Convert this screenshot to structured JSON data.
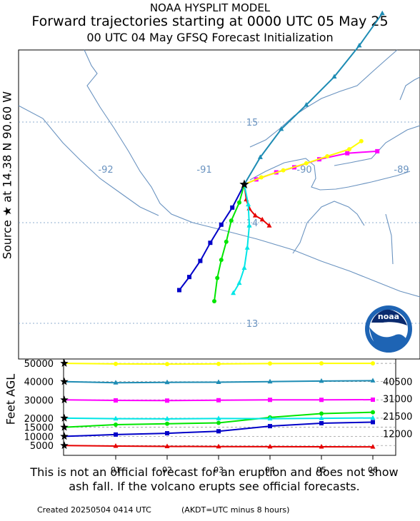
{
  "header": {
    "model": "NOAA HYSPLIT MODEL",
    "title": "Forward trajectories starting at 0000 UTC 05 May 25",
    "subtitle": "00 UTC 04 May    GFSQ  Forecast Initialization"
  },
  "source_label": "Source ★ at   14.38 N   90.60 W",
  "logo_text": "noaa",
  "disclaimer": "This is not an official forecast for an eruption and does not show ash fall. If the volcano erupts see official forecasts.",
  "footer": {
    "created": "Created 20250504 0414 UTC",
    "note": "(AKDT=UTC minus 8 hours)"
  },
  "colors": {
    "map_line": "#6a93c0",
    "grid_label": "#6a93c0",
    "t5000": "#e60000",
    "t10000": "#0000c8",
    "t15000": "#00e600",
    "t20000": "#00e6e6",
    "t30000": "#ff00ff",
    "t40000": "#1e8cb4",
    "t50000": "#ffff00"
  },
  "chart_data": [
    {
      "type": "line",
      "title": "Forward trajectories starting at 0000 UTC 05 May 25",
      "source": {
        "lat": 14.38,
        "lon": -90.6
      },
      "xlabel": "",
      "ylabel": "",
      "lon_ticks": [
        "-92",
        "-91",
        "-90",
        "-89"
      ],
      "lat_ticks": [
        "15",
        "14",
        "13"
      ],
      "series": [
        {
          "name": "5000",
          "lon": [
            -90.6,
            -90.58,
            -90.55,
            -90.49,
            -90.42,
            -90.35
          ],
          "lat": [
            14.38,
            14.23,
            14.14,
            14.07,
            14.03,
            13.97
          ]
        },
        {
          "name": "10000",
          "lon": [
            -90.6,
            -90.72,
            -90.83,
            -90.94,
            -91.04,
            -91.15,
            -91.25
          ],
          "lat": [
            14.38,
            14.15,
            13.98,
            13.8,
            13.62,
            13.46,
            13.33
          ]
        },
        {
          "name": "15000",
          "lon": [
            -90.6,
            -90.65,
            -90.73,
            -90.78,
            -90.83,
            -90.87,
            -90.9
          ],
          "lat": [
            14.38,
            14.2,
            14.02,
            13.81,
            13.63,
            13.45,
            13.22
          ]
        },
        {
          "name": "20000",
          "lon": [
            -90.6,
            -90.56,
            -90.55,
            -90.57,
            -90.6,
            -90.65,
            -90.71
          ],
          "lat": [
            14.38,
            14.18,
            13.97,
            13.75,
            13.55,
            13.4,
            13.3
          ]
        },
        {
          "name": "30000",
          "lon": [
            -90.6,
            -90.48,
            -90.28,
            -90.1,
            -89.85,
            -89.57,
            -89.27
          ],
          "lat": [
            14.38,
            14.43,
            14.5,
            14.55,
            14.63,
            14.69,
            14.71
          ]
        },
        {
          "name": "40000",
          "lon": [
            -90.6,
            -90.44,
            -90.23,
            -89.98,
            -89.7,
            -89.45,
            -89.22
          ],
          "lat": [
            14.38,
            14.65,
            14.93,
            15.17,
            15.45,
            15.76,
            16.08
          ]
        },
        {
          "name": "50000",
          "lon": [
            -90.6,
            -90.43,
            -90.21,
            -89.98,
            -89.77,
            -89.55,
            -89.43
          ],
          "lat": [
            14.38,
            14.45,
            14.52,
            14.59,
            14.66,
            14.73,
            14.81
          ]
        }
      ]
    },
    {
      "type": "line",
      "xlabel": "",
      "ylabel": "Feet AGL",
      "x": [
        "00",
        "01",
        "02",
        "03",
        "04",
        "05",
        "06"
      ],
      "x_tick_labels": [
        "01",
        "02",
        "03",
        "04",
        "05",
        "06"
      ],
      "y_ticks": [
        "50000",
        "40000",
        "30000",
        "20000",
        "15000",
        "10000",
        "5000"
      ],
      "end_labels": [
        "40500",
        "31000",
        "21500",
        "12000"
      ],
      "ylim": [
        0,
        52000
      ],
      "series": [
        {
          "name": "5000",
          "values": [
            5000,
            4700,
            4500,
            4400,
            4350,
            4300,
            4250
          ]
        },
        {
          "name": "10000",
          "values": [
            10000,
            11000,
            11700,
            12800,
            15600,
            17200,
            17800
          ]
        },
        {
          "name": "15000",
          "values": [
            15000,
            16400,
            16900,
            17400,
            20400,
            22500,
            23200
          ]
        },
        {
          "name": "20000",
          "values": [
            20000,
            19700,
            19600,
            19800,
            19700,
            19900,
            20100
          ]
        },
        {
          "name": "30000",
          "values": [
            30000,
            29700,
            29600,
            29800,
            30000,
            30000,
            30100
          ]
        },
        {
          "name": "40000",
          "values": [
            40000,
            39400,
            39600,
            39700,
            40000,
            40300,
            40500
          ]
        },
        {
          "name": "50000",
          "values": [
            50000,
            49700,
            49600,
            49700,
            49900,
            50000,
            50000
          ]
        }
      ]
    }
  ]
}
